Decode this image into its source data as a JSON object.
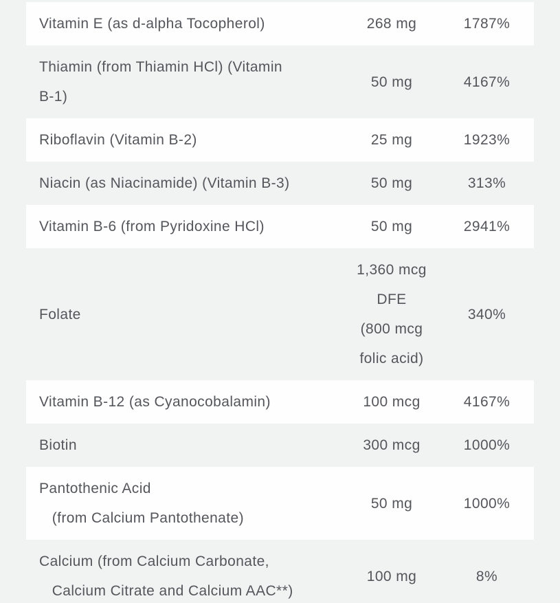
{
  "page": {
    "background_color": "#f1f2f2",
    "row_highlight_color": "#fefefe",
    "text_color": "#54565b"
  },
  "table": {
    "columns": [
      "nutrient",
      "amount",
      "percent_daily_value"
    ],
    "rows": [
      {
        "name": "Vitamin E (as d-alpha Tocopherol)",
        "amount": "268 mg",
        "percent": "1787%",
        "shaded": false
      },
      {
        "name": "Thiamin (from Thiamin HCl) (Vitamin\nB-1)",
        "amount": "50 mg",
        "percent": "4167%",
        "shaded": true
      },
      {
        "name": "Riboflavin (Vitamin B-2)",
        "amount": "25 mg",
        "percent": "1923%",
        "shaded": false
      },
      {
        "name": "Niacin (as Niacinamide) (Vitamin B-3)",
        "amount": "50 mg",
        "percent": "313%",
        "shaded": true
      },
      {
        "name": "Vitamin B-6 (from Pyridoxine HCl)",
        "amount": "50 mg",
        "percent": "2941%",
        "shaded": false
      },
      {
        "name": "Folate",
        "amount": "1,360 mcg\nDFE\n(800 mcg\nfolic acid)",
        "percent": "340%",
        "shaded": true
      },
      {
        "name": "Vitamin B-12 (as Cyanocobalamin)",
        "amount": "100 mcg",
        "percent": "4167%",
        "shaded": false
      },
      {
        "name": "Biotin",
        "amount": "300 mcg",
        "percent": "1000%",
        "shaded": true
      },
      {
        "name": "Pantothenic Acid\n   (from Calcium Pantothenate)",
        "amount": "50 mg",
        "percent": "1000%",
        "shaded": false
      },
      {
        "name": "Calcium (from Calcium Carbonate,\n   Calcium Citrate and Calcium AAC**)",
        "amount": "100 mg",
        "percent": "8%",
        "shaded": true
      }
    ]
  }
}
